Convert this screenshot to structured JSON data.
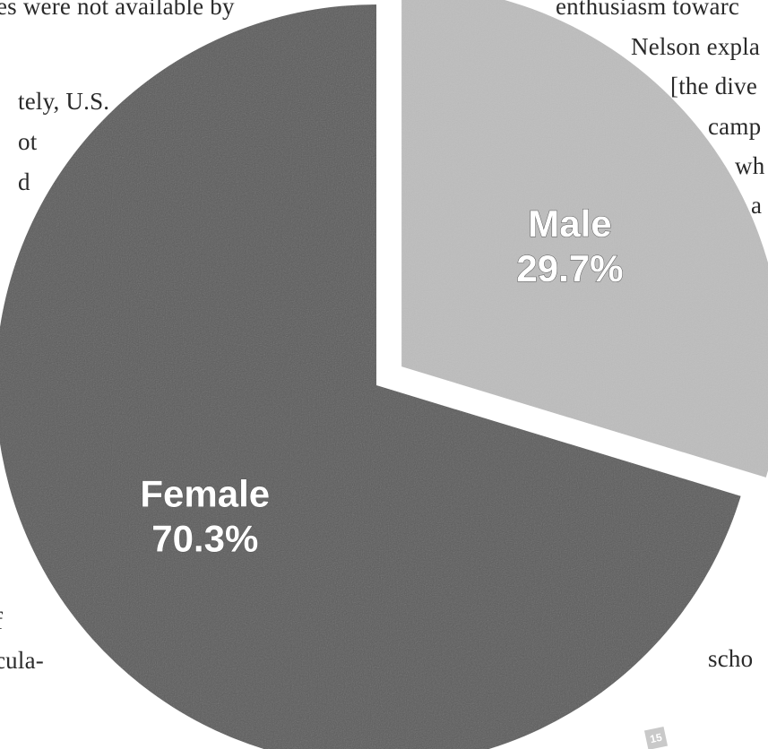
{
  "background_text": {
    "left_lines": [
      "es were not available by",
      "tely, U.S.",
      "ot",
      "d",
      "f",
      "cula-"
    ],
    "right_lines": [
      "enthusiasm towarc",
      "Nelson expla",
      "[the dive",
      "camp",
      "wh",
      "a",
      "scho"
    ],
    "page_number": "15"
  },
  "colors": {
    "female_slice": "#5c5c5c",
    "male_slice": "#bdbdbd",
    "label_text": "#ffffff"
  },
  "chart_data": {
    "type": "pie",
    "title": "",
    "slices": [
      {
        "label": "Female",
        "value": 70.3,
        "display": "70.3%",
        "exploded": false
      },
      {
        "label": "Male",
        "value": 29.7,
        "display": "29.7%",
        "exploded": true
      }
    ]
  }
}
